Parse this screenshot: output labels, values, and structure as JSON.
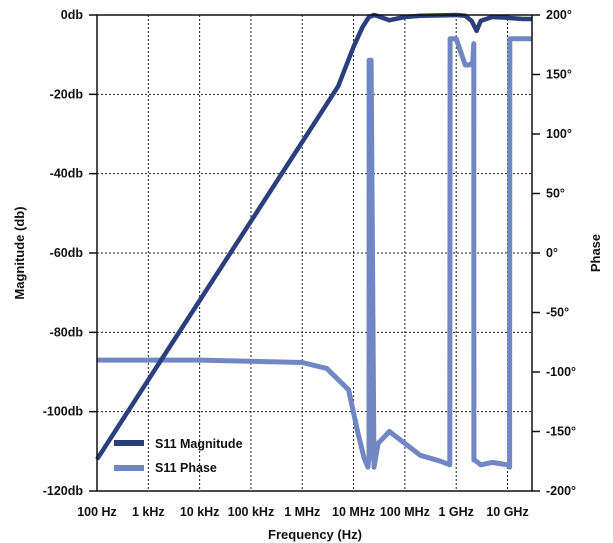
{
  "chart_data": {
    "type": "line",
    "xlabel": "Frequency (Hz)",
    "ylabel": "Magnitude (db)",
    "y2label": "Phase",
    "xscale": "log",
    "xlim": [
      100,
      30000000000
    ],
    "ylim": [
      -120,
      0
    ],
    "y2lim": [
      -200,
      200
    ],
    "grid": true,
    "legend_position": "bottom-left",
    "x_ticks": [
      {
        "value": 100,
        "label": "100 Hz"
      },
      {
        "value": 1000,
        "label": "1 kHz"
      },
      {
        "value": 10000,
        "label": "10 kHz"
      },
      {
        "value": 100000,
        "label": "100 kHz"
      },
      {
        "value": 1000000,
        "label": "1 MHz"
      },
      {
        "value": 10000000,
        "label": "10 MHz"
      },
      {
        "value": 100000000,
        "label": "100 MHz"
      },
      {
        "value": 1000000000,
        "label": "1 GHz"
      },
      {
        "value": 10000000000,
        "label": "10 GHz"
      }
    ],
    "y_ticks": [
      {
        "value": 0,
        "label": "0db"
      },
      {
        "value": -20,
        "label": "-20db"
      },
      {
        "value": -40,
        "label": "-40db"
      },
      {
        "value": -60,
        "label": "-60db"
      },
      {
        "value": -80,
        "label": "-80db"
      },
      {
        "value": -100,
        "label": "-100db"
      },
      {
        "value": -120,
        "label": "-120db"
      }
    ],
    "y2_ticks": [
      {
        "value": 200,
        "label": "200°"
      },
      {
        "value": 150,
        "label": "150°"
      },
      {
        "value": 100,
        "label": "100°"
      },
      {
        "value": 50,
        "label": "50°"
      },
      {
        "value": 0,
        "label": "0°"
      },
      {
        "value": -50,
        "label": "-50°"
      },
      {
        "value": -100,
        "label": "-100°"
      },
      {
        "value": -150,
        "label": "-150°"
      },
      {
        "value": -200,
        "label": "-200°"
      }
    ],
    "series": [
      {
        "name": "S11 Magnitude",
        "axis": "left",
        "color": "#2b3f7e",
        "x": [
          100,
          1000,
          10000,
          100000,
          1000000,
          5000000,
          10000000,
          15000000,
          20000000,
          25000000,
          30000000,
          50000000,
          100000000,
          200000000,
          500000000,
          1000000000,
          1500000000,
          2000000000,
          2500000000,
          3000000000,
          5000000000,
          10000000000,
          20000000000,
          30000000000
        ],
        "y": [
          -112,
          -92,
          -72,
          -52,
          -32,
          -18,
          -8,
          -3,
          -0.5,
          0,
          -0.3,
          -1.3,
          -0.5,
          -0.2,
          -0.1,
          0,
          -0.2,
          -1.5,
          -4,
          -1.5,
          -0.5,
          -0.7,
          -1,
          -1
        ]
      },
      {
        "name": "S11 Phase",
        "axis": "right",
        "color": "#7087c4",
        "x": [
          100,
          10000,
          1000000,
          3000000,
          8000000,
          12000000,
          16000000,
          19000000,
          20000000,
          20100000,
          21000000,
          22000000,
          25000000,
          30000000,
          50000000,
          100000000,
          200000000,
          500000000,
          750000000,
          760000000,
          900000000,
          1000000000,
          1200000000,
          1500000000,
          1800000000,
          2100000000,
          2200000000,
          2210000000,
          2300000000,
          3000000000,
          5000000000,
          10000000000,
          11000000000,
          11100000000,
          15000000000,
          20000000000,
          30000000000
        ],
        "y": [
          -90,
          -90,
          -92,
          -97,
          -115,
          -150,
          -172,
          -180,
          -172,
          162,
          162,
          162,
          -180,
          -160,
          -150,
          -160,
          -170,
          -175,
          -178,
          180,
          180,
          180,
          170,
          158,
          158,
          160,
          176,
          -174,
          -174,
          -178,
          -176,
          -178,
          -180,
          180,
          180,
          180,
          180
        ]
      }
    ]
  }
}
